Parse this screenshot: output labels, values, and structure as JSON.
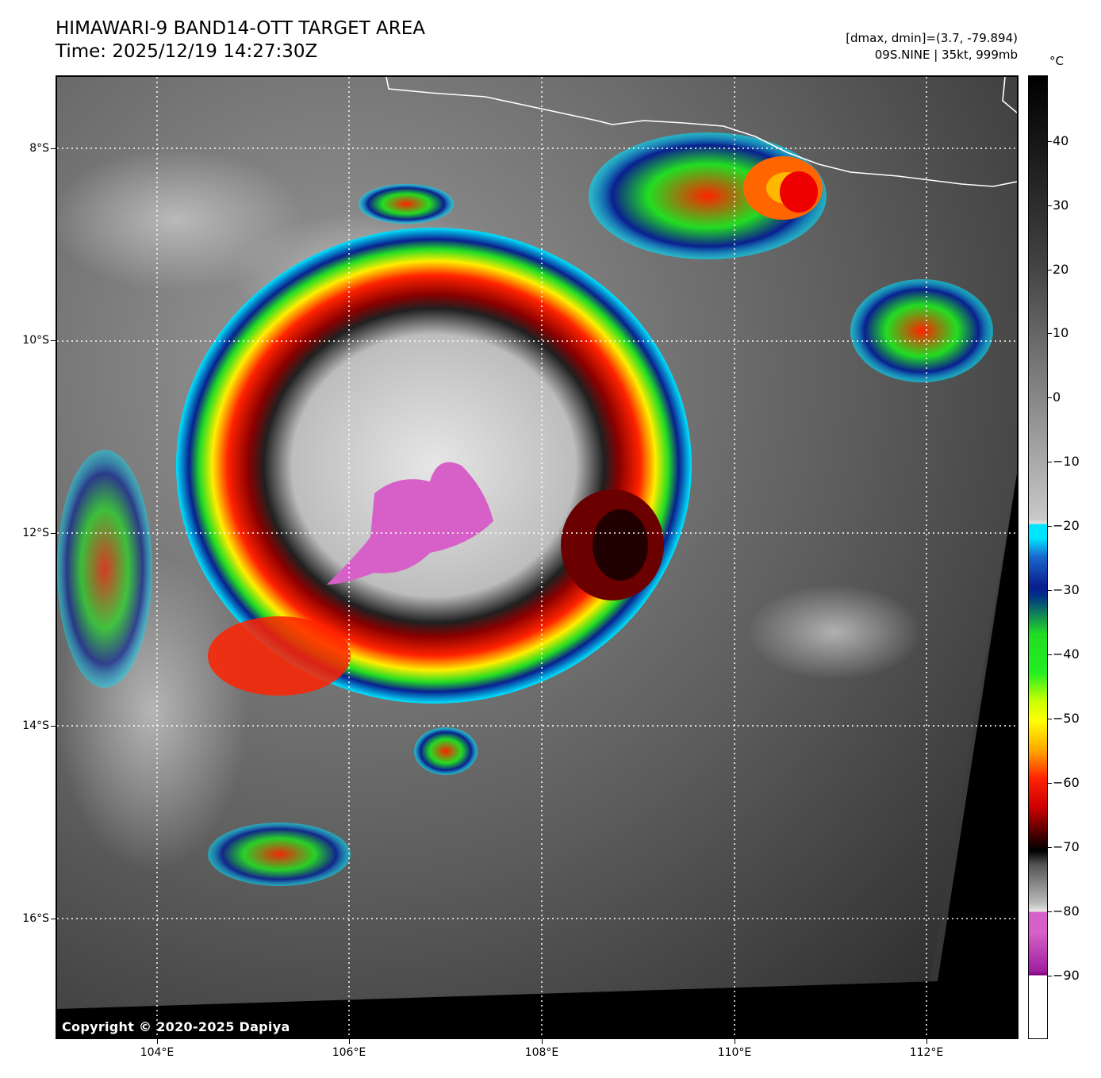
{
  "header": {
    "title_line1": "HIMAWARI-9 BAND14-OTT TARGET AREA",
    "title_line2": "Time: 2025/12/19 14:27:30Z",
    "range_text": "[dmax, dmin]=(3.7, -79.894)",
    "storm_text": "09S.NINE | 35kt, 999mb"
  },
  "map": {
    "lat_labels": [
      "8°S",
      "10°S",
      "12°S",
      "14°S",
      "16°S"
    ],
    "lon_labels": [
      "104°E",
      "106°E",
      "108°E",
      "110°E",
      "112°E"
    ],
    "copyright": "Copyright © 2020-2025 Dapiya",
    "grid": "dotted white"
  },
  "colorbar": {
    "unit": "°C",
    "labels": [
      "40",
      "30",
      "20",
      "10",
      "0",
      "−10",
      "−20",
      "−30",
      "−40",
      "−50",
      "−60",
      "−70",
      "−80",
      "−90"
    ],
    "colors": {
      "warm": "#000000",
      "cold_cloud": "#e6e6e6",
      "cyan": "#00e5ff",
      "blue": "#0a1f8f",
      "green": "#22dd22",
      "yellow": "#ffff00",
      "red": "#ee0000",
      "darkred": "#400000",
      "magenta": "#d660c8",
      "white": "#ffffff"
    }
  }
}
